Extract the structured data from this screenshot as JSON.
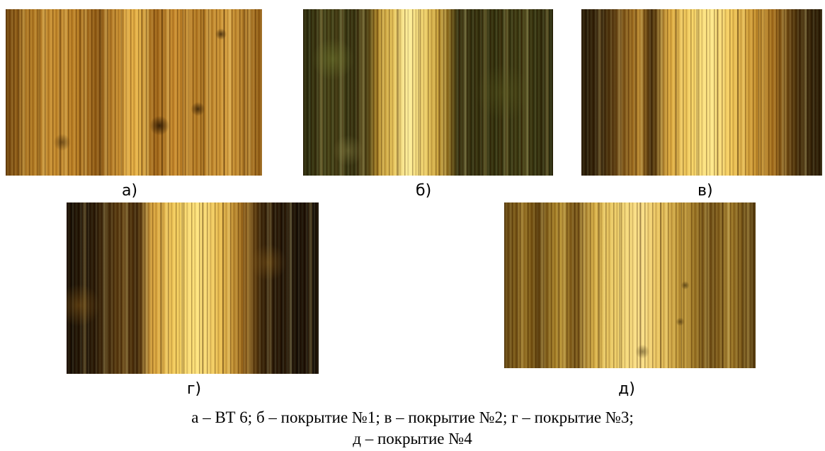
{
  "panels": [
    {
      "label": "а)"
    },
    {
      "label": "б)"
    },
    {
      "label": "в)"
    },
    {
      "label": "г)"
    },
    {
      "label": "д)"
    }
  ],
  "caption": {
    "line1": "а – ВТ 6; б – покрытие №1; в – покрытие №2; г – покрытие №3;",
    "line2": "д – покрытие №4"
  }
}
